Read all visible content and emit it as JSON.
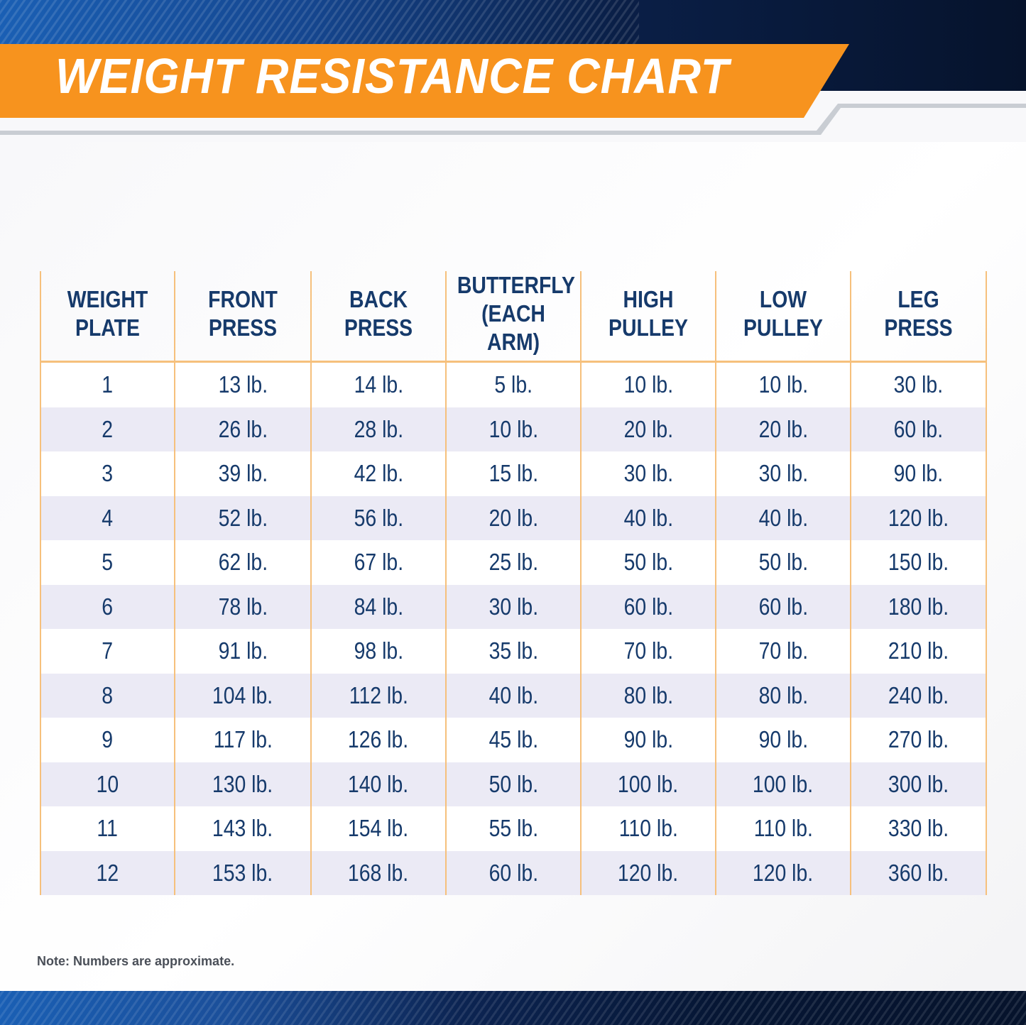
{
  "title": "WEIGHT RESISTANCE CHART",
  "colors": {
    "accent_orange": "#f7931e",
    "navy": "#061634",
    "blue": "#1a5fb4",
    "text": "#163a6b",
    "grid_line": "#f6c07c",
    "stripe": "#ebeaf5"
  },
  "chart_data": {
    "type": "table",
    "title": "WEIGHT RESISTANCE CHART",
    "columns": [
      {
        "line1": "WEIGHT",
        "line2": "PLATE"
      },
      {
        "line1": "FRONT",
        "line2": "PRESS"
      },
      {
        "line1": "BACK",
        "line2": "PRESS"
      },
      {
        "line1": "BUTTERFLY",
        "line2": "(EACH ARM)"
      },
      {
        "line1": "HIGH",
        "line2": "PULLEY"
      },
      {
        "line1": "LOW",
        "line2": "PULLEY"
      },
      {
        "line1": "LEG",
        "line2": "PRESS"
      }
    ],
    "rows": [
      [
        "1",
        "13 lb.",
        "14 lb.",
        "5 lb.",
        "10 lb.",
        "10 lb.",
        "30 lb."
      ],
      [
        "2",
        "26 lb.",
        "28 lb.",
        "10 lb.",
        "20 lb.",
        "20 lb.",
        "60 lb."
      ],
      [
        "3",
        "39 lb.",
        "42 lb.",
        "15 lb.",
        "30 lb.",
        "30 lb.",
        "90 lb."
      ],
      [
        "4",
        "52 lb.",
        "56 lb.",
        "20 lb.",
        "40 lb.",
        "40 lb.",
        "120 lb."
      ],
      [
        "5",
        "62 lb.",
        "67 lb.",
        "25 lb.",
        "50 lb.",
        "50 lb.",
        "150 lb."
      ],
      [
        "6",
        "78 lb.",
        "84 lb.",
        "30 lb.",
        "60 lb.",
        "60 lb.",
        "180 lb."
      ],
      [
        "7",
        "91 lb.",
        "98 lb.",
        "35 lb.",
        "70 lb.",
        "70 lb.",
        "210 lb."
      ],
      [
        "8",
        "104 lb.",
        "112 lb.",
        "40 lb.",
        "80 lb.",
        "80 lb.",
        "240 lb."
      ],
      [
        "9",
        "117 lb.",
        "126 lb.",
        "45 lb.",
        "90 lb.",
        "90 lb.",
        "270 lb."
      ],
      [
        "10",
        "130 lb.",
        "140 lb.",
        "50 lb.",
        "100 lb.",
        "100 lb.",
        "300 lb."
      ],
      [
        "11",
        "143 lb.",
        "154 lb.",
        "55 lb.",
        "110 lb.",
        "110 lb.",
        "330 lb."
      ],
      [
        "12",
        "153 lb.",
        "168 lb.",
        "60 lb.",
        "120 lb.",
        "120 lb.",
        "360 lb."
      ]
    ]
  },
  "note": "Note: Numbers are approximate."
}
